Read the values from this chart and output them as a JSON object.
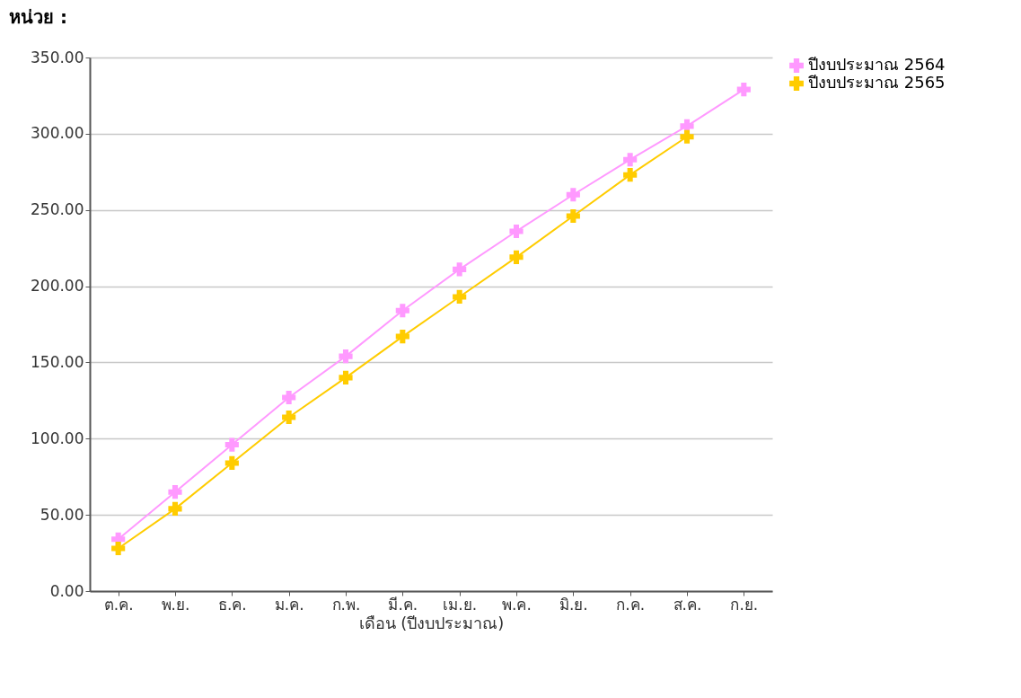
{
  "chart_data": {
    "type": "line",
    "title": "หน่วย :",
    "xlabel": "เดือน (ปีงบประมาณ)",
    "categories": [
      "ต.ค.",
      "พ.ย.",
      "ธ.ค.",
      "ม.ค.",
      "ก.พ.",
      "มี.ค.",
      "เม.ย.",
      "พ.ค.",
      "มิ.ย.",
      "ก.ค.",
      "ส.ค.",
      "ก.ย."
    ],
    "series": [
      {
        "name": "ปีงบประมาณ 2564",
        "color": "#ff99ff",
        "values": [
          34,
          65,
          96,
          127,
          154,
          184,
          211,
          236,
          260,
          283,
          305,
          329
        ]
      },
      {
        "name": "ปีงบประมาณ 2565",
        "color": "#ffcc00",
        "values": [
          28,
          54,
          84,
          114,
          140,
          167,
          193,
          219,
          246,
          273,
          298,
          null
        ]
      }
    ],
    "ylim": [
      0,
      350
    ],
    "yticks": [
      {
        "value": 0,
        "label": "0.00"
      },
      {
        "value": 50,
        "label": "50.00"
      },
      {
        "value": 100,
        "label": "100.00"
      },
      {
        "value": 150,
        "label": "150.00"
      },
      {
        "value": 200,
        "label": "200.00"
      },
      {
        "value": 250,
        "label": "250.00"
      },
      {
        "value": 300,
        "label": "300.00"
      },
      {
        "value": 350,
        "label": "350.00"
      }
    ],
    "grid": "y",
    "legend": "top right",
    "marker": "cross",
    "line_style": "solid"
  }
}
